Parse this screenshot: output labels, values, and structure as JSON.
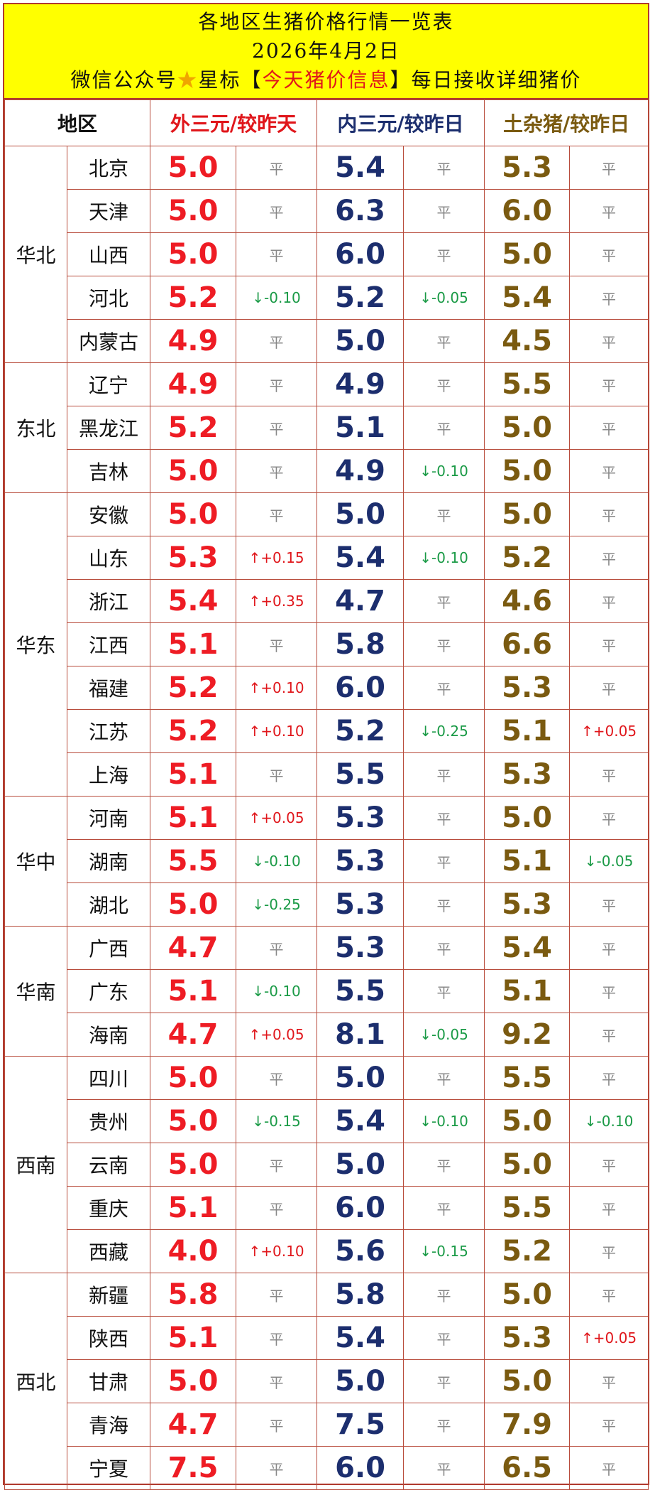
{
  "header": {
    "title": "各地区生猪价格行情一览表",
    "date": "2026年4月2日",
    "promo_prefix": "微信公众号",
    "star_glyph": "★",
    "promo_mid": "星标【",
    "promo_highlight": "今天猪价信息",
    "promo_suffix": "】每日接收详细猪价"
  },
  "columns": {
    "region": "地区",
    "outer": "外三元/较昨天",
    "inner": "内三元/较昨日",
    "local": "土杂猪/较昨日"
  },
  "flat_label": "平",
  "colors": {
    "outer": "#ee1c24",
    "inner": "#1c2e6e",
    "local": "#7a5a10",
    "up": "#e0161b",
    "down": "#1a9a46",
    "banner": "#ffff00"
  },
  "regions": [
    {
      "name": "华北",
      "rows": [
        {
          "province": "北京",
          "outer": "5.0",
          "outer_chg": "平",
          "inner": "5.4",
          "inner_chg": "平",
          "local": "5.3",
          "local_chg": "平"
        },
        {
          "province": "天津",
          "outer": "5.0",
          "outer_chg": "平",
          "inner": "6.3",
          "inner_chg": "平",
          "local": "6.0",
          "local_chg": "平"
        },
        {
          "province": "山西",
          "outer": "5.0",
          "outer_chg": "平",
          "inner": "6.0",
          "inner_chg": "平",
          "local": "5.0",
          "local_chg": "平"
        },
        {
          "province": "河北",
          "outer": "5.2",
          "outer_chg": "↓-0.10",
          "inner": "5.2",
          "inner_chg": "↓-0.05",
          "local": "5.4",
          "local_chg": "平"
        },
        {
          "province": "内蒙古",
          "outer": "4.9",
          "outer_chg": "平",
          "inner": "5.0",
          "inner_chg": "平",
          "local": "4.5",
          "local_chg": "平"
        }
      ]
    },
    {
      "name": "东北",
      "rows": [
        {
          "province": "辽宁",
          "outer": "4.9",
          "outer_chg": "平",
          "inner": "4.9",
          "inner_chg": "平",
          "local": "5.5",
          "local_chg": "平"
        },
        {
          "province": "黑龙江",
          "outer": "5.2",
          "outer_chg": "平",
          "inner": "5.1",
          "inner_chg": "平",
          "local": "5.0",
          "local_chg": "平"
        },
        {
          "province": "吉林",
          "outer": "5.0",
          "outer_chg": "平",
          "inner": "4.9",
          "inner_chg": "↓-0.10",
          "local": "5.0",
          "local_chg": "平"
        }
      ]
    },
    {
      "name": "华东",
      "rows": [
        {
          "province": "安徽",
          "outer": "5.0",
          "outer_chg": "平",
          "inner": "5.0",
          "inner_chg": "平",
          "local": "5.0",
          "local_chg": "平"
        },
        {
          "province": "山东",
          "outer": "5.3",
          "outer_chg": "↑+0.15",
          "inner": "5.4",
          "inner_chg": "↓-0.10",
          "local": "5.2",
          "local_chg": "平"
        },
        {
          "province": "浙江",
          "outer": "5.4",
          "outer_chg": "↑+0.35",
          "inner": "4.7",
          "inner_chg": "平",
          "local": "4.6",
          "local_chg": "平"
        },
        {
          "province": "江西",
          "outer": "5.1",
          "outer_chg": "平",
          "inner": "5.8",
          "inner_chg": "平",
          "local": "6.6",
          "local_chg": "平"
        },
        {
          "province": "福建",
          "outer": "5.2",
          "outer_chg": "↑+0.10",
          "inner": "6.0",
          "inner_chg": "平",
          "local": "5.3",
          "local_chg": "平"
        },
        {
          "province": "江苏",
          "outer": "5.2",
          "outer_chg": "↑+0.10",
          "inner": "5.2",
          "inner_chg": "↓-0.25",
          "local": "5.1",
          "local_chg": "↑+0.05"
        },
        {
          "province": "上海",
          "outer": "5.1",
          "outer_chg": "平",
          "inner": "5.5",
          "inner_chg": "平",
          "local": "5.3",
          "local_chg": "平"
        }
      ]
    },
    {
      "name": "华中",
      "rows": [
        {
          "province": "河南",
          "outer": "5.1",
          "outer_chg": "↑+0.05",
          "inner": "5.3",
          "inner_chg": "平",
          "local": "5.0",
          "local_chg": "平"
        },
        {
          "province": "湖南",
          "outer": "5.5",
          "outer_chg": "↓-0.10",
          "inner": "5.3",
          "inner_chg": "平",
          "local": "5.1",
          "local_chg": "↓-0.05"
        },
        {
          "province": "湖北",
          "outer": "5.0",
          "outer_chg": "↓-0.25",
          "inner": "5.3",
          "inner_chg": "平",
          "local": "5.3",
          "local_chg": "平"
        }
      ]
    },
    {
      "name": "华南",
      "rows": [
        {
          "province": "广西",
          "outer": "4.7",
          "outer_chg": "平",
          "inner": "5.3",
          "inner_chg": "平",
          "local": "5.4",
          "local_chg": "平"
        },
        {
          "province": "广东",
          "outer": "5.1",
          "outer_chg": "↓-0.10",
          "inner": "5.5",
          "inner_chg": "平",
          "local": "5.1",
          "local_chg": "平"
        },
        {
          "province": "海南",
          "outer": "4.7",
          "outer_chg": "↑+0.05",
          "inner": "8.1",
          "inner_chg": "↓-0.05",
          "local": "9.2",
          "local_chg": "平"
        }
      ]
    },
    {
      "name": "西南",
      "rows": [
        {
          "province": "四川",
          "outer": "5.0",
          "outer_chg": "平",
          "inner": "5.0",
          "inner_chg": "平",
          "local": "5.5",
          "local_chg": "平"
        },
        {
          "province": "贵州",
          "outer": "5.0",
          "outer_chg": "↓-0.15",
          "inner": "5.4",
          "inner_chg": "↓-0.10",
          "local": "5.0",
          "local_chg": "↓-0.10"
        },
        {
          "province": "云南",
          "outer": "5.0",
          "outer_chg": "平",
          "inner": "5.0",
          "inner_chg": "平",
          "local": "5.0",
          "local_chg": "平"
        },
        {
          "province": "重庆",
          "outer": "5.1",
          "outer_chg": "平",
          "inner": "6.0",
          "inner_chg": "平",
          "local": "5.5",
          "local_chg": "平"
        },
        {
          "province": "西藏",
          "outer": "4.0",
          "outer_chg": "↑+0.10",
          "inner": "5.6",
          "inner_chg": "↓-0.15",
          "local": "5.2",
          "local_chg": "平"
        }
      ]
    },
    {
      "name": "西北",
      "rows": [
        {
          "province": "新疆",
          "outer": "5.8",
          "outer_chg": "平",
          "inner": "5.8",
          "inner_chg": "平",
          "local": "5.0",
          "local_chg": "平"
        },
        {
          "province": "陕西",
          "outer": "5.1",
          "outer_chg": "平",
          "inner": "5.4",
          "inner_chg": "平",
          "local": "5.3",
          "local_chg": "↑+0.05"
        },
        {
          "province": "甘肃",
          "outer": "5.0",
          "outer_chg": "平",
          "inner": "5.0",
          "inner_chg": "平",
          "local": "5.0",
          "local_chg": "平"
        },
        {
          "province": "青海",
          "outer": "4.7",
          "outer_chg": "平",
          "inner": "7.5",
          "inner_chg": "平",
          "local": "7.9",
          "local_chg": "平"
        },
        {
          "province": "宁夏",
          "outer": "7.5",
          "outer_chg": "平",
          "inner": "6.0",
          "inner_chg": "平",
          "local": "6.5",
          "local_chg": "平"
        }
      ]
    }
  ]
}
